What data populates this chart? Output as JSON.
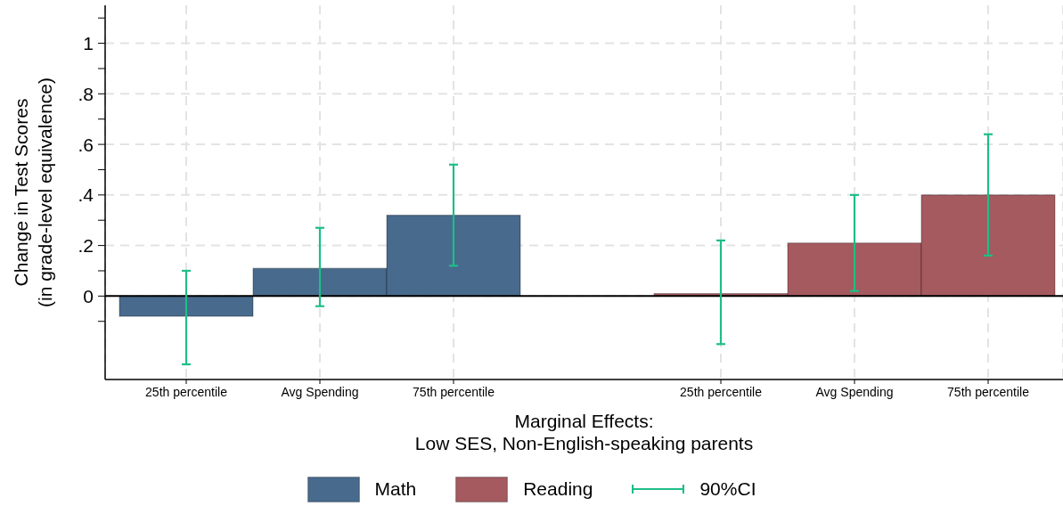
{
  "chart_data": {
    "type": "bar",
    "categories": [
      "25th percentile",
      "Avg Spending",
      "75th percentile",
      null,
      "25th percentile",
      "Avg Spending",
      "75th percentile"
    ],
    "series": [
      {
        "name": "Math",
        "color": "#476a8d",
        "values": [
          -0.08,
          0.11,
          0.32,
          null,
          null,
          null,
          null
        ],
        "errors": [
          [
            -0.27,
            0.1
          ],
          [
            -0.04,
            0.27
          ],
          [
            0.12,
            0.52
          ],
          null,
          null,
          null,
          null
        ]
      },
      {
        "name": "Reading",
        "color": "#a45a5f",
        "values": [
          null,
          null,
          null,
          null,
          0.01,
          0.21,
          0.4
        ],
        "errors": [
          null,
          null,
          null,
          null,
          [
            -0.19,
            0.22
          ],
          [
            0.02,
            0.4
          ],
          [
            0.16,
            0.64
          ]
        ]
      },
      {
        "name": "90%CI",
        "color": "#1dbe86",
        "values": [
          null,
          null,
          null,
          null,
          null,
          null,
          null
        ]
      }
    ],
    "xlabel": "Marginal Effects:\nLow SES, Non-English-speaking parents",
    "ylabel": "Change in Test Scores\n(in grade-level equivalence)",
    "ylim": [
      -0.33,
      1.15
    ],
    "yticks": [
      {
        "value": -0.1,
        "label": null
      },
      0,
      {
        "value": 0.1,
        "label": null
      },
      {
        "value": 0.2,
        "label": ".2"
      },
      {
        "value": 0.3,
        "label": null
      },
      {
        "value": 0.4,
        "label": ".4"
      },
      {
        "value": 0.5,
        "label": null
      },
      {
        "value": 0.6,
        "label": ".6"
      },
      {
        "value": 0.7,
        "label": null
      },
      {
        "value": 0.8,
        "label": ".8"
      },
      {
        "value": 0.9,
        "label": null
      },
      1,
      {
        "value": 1.1,
        "label": null
      }
    ],
    "ref_lines": [
      {
        "axis": "y",
        "value": 0,
        "color": "#000000"
      }
    ],
    "grid": true,
    "legend": "bottom"
  }
}
